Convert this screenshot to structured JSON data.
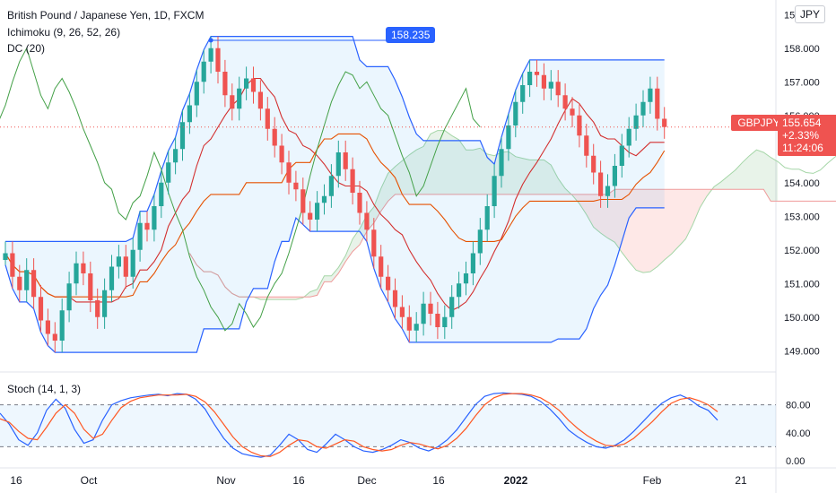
{
  "legend": {
    "title": "British Pound / Japanese Yen, 1D, FXCM",
    "ichimoku": "Ichimoku (9, 26, 52, 26)",
    "dc": "DC (20)",
    "stoch": "Stoch (14, 1, 3)"
  },
  "currency_button": "JPY",
  "high_marker": "158.235",
  "last_price": {
    "symbol": "GBPJPY",
    "price": "155.654",
    "change": "+2.33%",
    "countdown": "11:24:06"
  },
  "colors": {
    "up": "#26a69a",
    "down": "#ef5350",
    "donchian": "#2962ff",
    "tenkan": "#d32f2f",
    "kijun": "#e65100",
    "chikou": "#43a047",
    "stoch_k": "#2962ff",
    "stoch_d": "#ff5722"
  },
  "chart_data": {
    "type": "candlestick",
    "x_ticks": [
      "16",
      "Oct",
      "Nov",
      "16",
      "Dec",
      "16",
      "2022",
      "Feb",
      "21"
    ],
    "y_ticks": [
      "149.000",
      "150.000",
      "151.000",
      "152.000",
      "153.000",
      "154.000",
      "155.000",
      "156.000",
      "157.000",
      "158.000",
      "159.000"
    ],
    "ylim": [
      148.5,
      159.3
    ],
    "stoch_ticks": [
      "0.00",
      "40.00",
      "80.00"
    ],
    "stoch_levels": [
      20,
      80
    ],
    "closes": [
      151.9,
      151.2,
      150.8,
      151.4,
      150.6,
      149.9,
      149.5,
      149.3,
      150.2,
      151.0,
      151.6,
      151.3,
      150.5,
      150.0,
      150.8,
      151.5,
      151.8,
      151.2,
      152.0,
      152.8,
      152.6,
      153.3,
      154.0,
      154.6,
      155.0,
      155.8,
      156.3,
      157.0,
      157.6,
      158.0,
      157.3,
      156.6,
      156.2,
      156.8,
      157.1,
      156.7,
      156.2,
      155.6,
      155.1,
      154.6,
      154.0,
      153.8,
      153.1,
      152.9,
      153.4,
      153.6,
      154.2,
      154.9,
      154.4,
      153.7,
      153.1,
      152.6,
      151.8,
      151.2,
      150.8,
      150.3,
      150.0,
      149.6,
      149.8,
      150.4,
      150.1,
      149.7,
      150.0,
      150.6,
      151.0,
      151.3,
      151.9,
      152.6,
      153.3,
      154.2,
      155.0,
      155.7,
      156.4,
      156.9,
      157.3,
      157.2,
      156.8,
      157.0,
      156.6,
      156.2,
      156.0,
      155.4,
      154.8,
      154.3,
      153.6,
      153.9,
      154.5,
      155.1,
      155.6,
      156.0,
      156.4,
      156.8,
      155.9,
      155.654
    ],
    "stoch_k": [
      68,
      52,
      30,
      22,
      40,
      72,
      88,
      75,
      45,
      25,
      30,
      58,
      80,
      86,
      90,
      92,
      94,
      95,
      93,
      96,
      95,
      88,
      74,
      52,
      32,
      18,
      10,
      7,
      5,
      8,
      22,
      38,
      30,
      16,
      12,
      24,
      38,
      30,
      20,
      14,
      12,
      16,
      22,
      30,
      26,
      18,
      14,
      20,
      30,
      44,
      62,
      80,
      92,
      96,
      97,
      96,
      95,
      92,
      85,
      74,
      60,
      44,
      34,
      26,
      20,
      18,
      22,
      30,
      42,
      56,
      70,
      82,
      90,
      94,
      88,
      78,
      72,
      58
    ],
    "stoch_d": [
      60,
      55,
      42,
      32,
      30,
      48,
      68,
      80,
      68,
      45,
      32,
      38,
      58,
      76,
      85,
      90,
      92,
      94,
      94,
      94,
      95,
      92,
      84,
      70,
      52,
      34,
      20,
      12,
      7,
      6,
      12,
      22,
      30,
      28,
      20,
      18,
      24,
      30,
      28,
      20,
      16,
      14,
      16,
      22,
      26,
      24,
      20,
      17,
      22,
      32,
      46,
      64,
      80,
      90,
      95,
      96,
      96,
      94,
      90,
      82,
      72,
      58,
      46,
      36,
      28,
      22,
      21,
      24,
      32,
      44,
      56,
      70,
      82,
      88,
      90,
      86,
      80,
      70
    ]
  }
}
